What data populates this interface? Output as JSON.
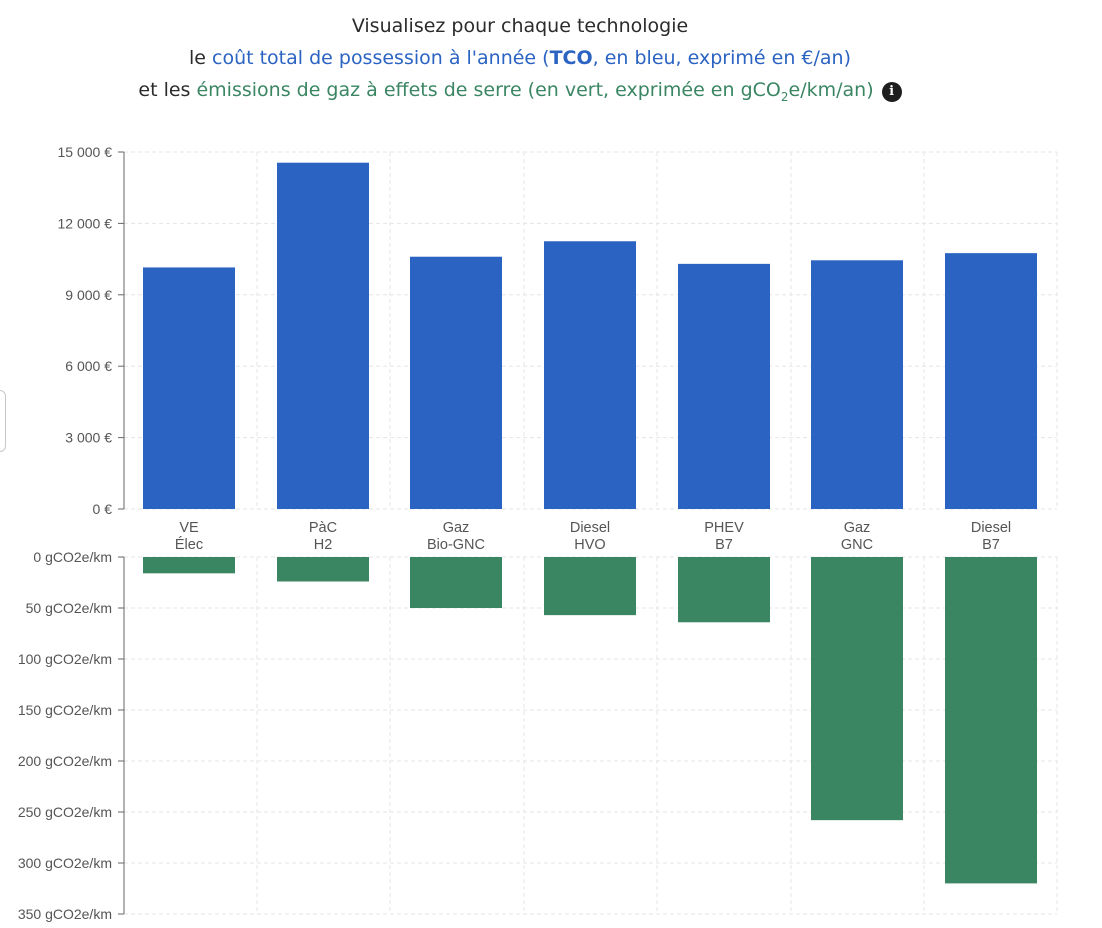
{
  "title": {
    "line1": "Visualisez pour chaque technologie",
    "line2_prefix": "le ",
    "line2_blue_a": "coût total de possession à l'année (",
    "line2_bold": "TCO",
    "line2_blue_b": ", en bleu, exprimé en €/an)",
    "line3_prefix": "et les ",
    "line3_green_a": "émissions de gaz à effets de serre (en vert, exprimée en gCO",
    "line3_sub": "2",
    "line3_green_b": "e/km/an)",
    "info_icon": "i"
  },
  "colors": {
    "tco": "#2b63c2",
    "emissions": "#3a8663",
    "grid": "#e3e6ea",
    "axis": "#666666"
  },
  "chart_data": [
    {
      "type": "bar",
      "name": "tco",
      "categories": [
        [
          "VE",
          "Élec"
        ],
        [
          "PàC",
          "H2"
        ],
        [
          "Gaz",
          "Bio-GNC"
        ],
        [
          "Diesel",
          "HVO"
        ],
        [
          "PHEV",
          "B7"
        ],
        [
          "Gaz",
          "GNC"
        ],
        [
          "Diesel",
          "B7"
        ]
      ],
      "values": [
        10150,
        14550,
        10600,
        11250,
        10300,
        10450,
        10750
      ],
      "ylim": [
        0,
        15000
      ],
      "yticks": [
        0,
        3000,
        6000,
        9000,
        12000,
        15000
      ],
      "ytick_labels": [
        "0 €",
        "3 000 €",
        "6 000 €",
        "9 000 €",
        "12 000 €",
        "15 000 €"
      ],
      "grid": true
    },
    {
      "type": "bar",
      "name": "emissions",
      "categories": [
        [
          "VE",
          "Élec"
        ],
        [
          "PàC",
          "H2"
        ],
        [
          "Gaz",
          "Bio-GNC"
        ],
        [
          "Diesel",
          "HVO"
        ],
        [
          "PHEV",
          "B7"
        ],
        [
          "Gaz",
          "GNC"
        ],
        [
          "Diesel",
          "B7"
        ]
      ],
      "values": [
        16,
        24,
        50,
        57,
        64,
        258,
        320
      ],
      "ylim": [
        0,
        350
      ],
      "inverted": true,
      "yticks": [
        0,
        50,
        100,
        150,
        200,
        250,
        300,
        350
      ],
      "ytick_labels": [
        "0 gCO2e/km",
        "50 gCO2e/km",
        "100 gCO2e/km",
        "150 gCO2e/km",
        "200 gCO2e/km",
        "250 gCO2e/km",
        "300 gCO2e/km",
        "350 gCO2e/km"
      ],
      "grid": true
    }
  ]
}
